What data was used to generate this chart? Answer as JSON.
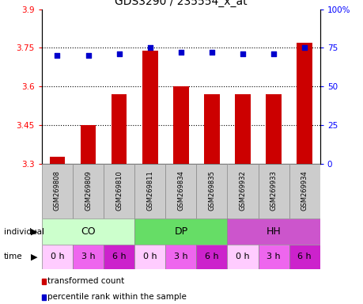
{
  "title": "GDS3290 / 235554_x_at",
  "samples": [
    "GSM269808",
    "GSM269809",
    "GSM269810",
    "GSM269811",
    "GSM269834",
    "GSM269835",
    "GSM269932",
    "GSM269933",
    "GSM269934"
  ],
  "red_values": [
    3.33,
    3.45,
    3.57,
    3.74,
    3.6,
    3.57,
    3.57,
    3.57,
    3.77
  ],
  "blue_values": [
    70,
    70,
    71,
    75,
    72,
    72,
    71,
    71,
    75
  ],
  "ylim_left": [
    3.3,
    3.9
  ],
  "ylim_right": [
    0,
    100
  ],
  "yticks_left": [
    3.3,
    3.45,
    3.6,
    3.75,
    3.9
  ],
  "yticks_right": [
    0,
    25,
    50,
    75,
    100
  ],
  "hlines": [
    3.45,
    3.6,
    3.75
  ],
  "individual_groups": [
    {
      "label": "CO",
      "start": 0,
      "end": 3,
      "color": "#ccffcc"
    },
    {
      "label": "DP",
      "start": 3,
      "end": 6,
      "color": "#66dd66"
    },
    {
      "label": "HH",
      "start": 6,
      "end": 9,
      "color": "#cc55cc"
    }
  ],
  "time_labels": [
    "0 h",
    "3 h",
    "6 h",
    "0 h",
    "3 h",
    "6 h",
    "0 h",
    "3 h",
    "6 h"
  ],
  "time_colors": [
    "#ffaaff",
    "#ee55ee",
    "#dd22dd",
    "#ffaaff",
    "#ee55ee",
    "#dd22dd",
    "#ffaaff",
    "#ee55ee",
    "#dd22dd"
  ],
  "time_bg_colors": [
    "#ffffff",
    "#ff99ff",
    "#ee44ee",
    "#ffffff",
    "#ff99ff",
    "#ee44ee",
    "#ffffff",
    "#ff99ff",
    "#ee44ee"
  ],
  "bar_color": "#cc0000",
  "dot_color": "#0000cc",
  "bar_width": 0.5,
  "sample_row_color": "#cccccc",
  "individual_label": "individual",
  "time_label": "time",
  "legend_red": "transformed count",
  "legend_blue": "percentile rank within the sample",
  "title_fontsize": 10,
  "tick_fontsize": 7.5
}
